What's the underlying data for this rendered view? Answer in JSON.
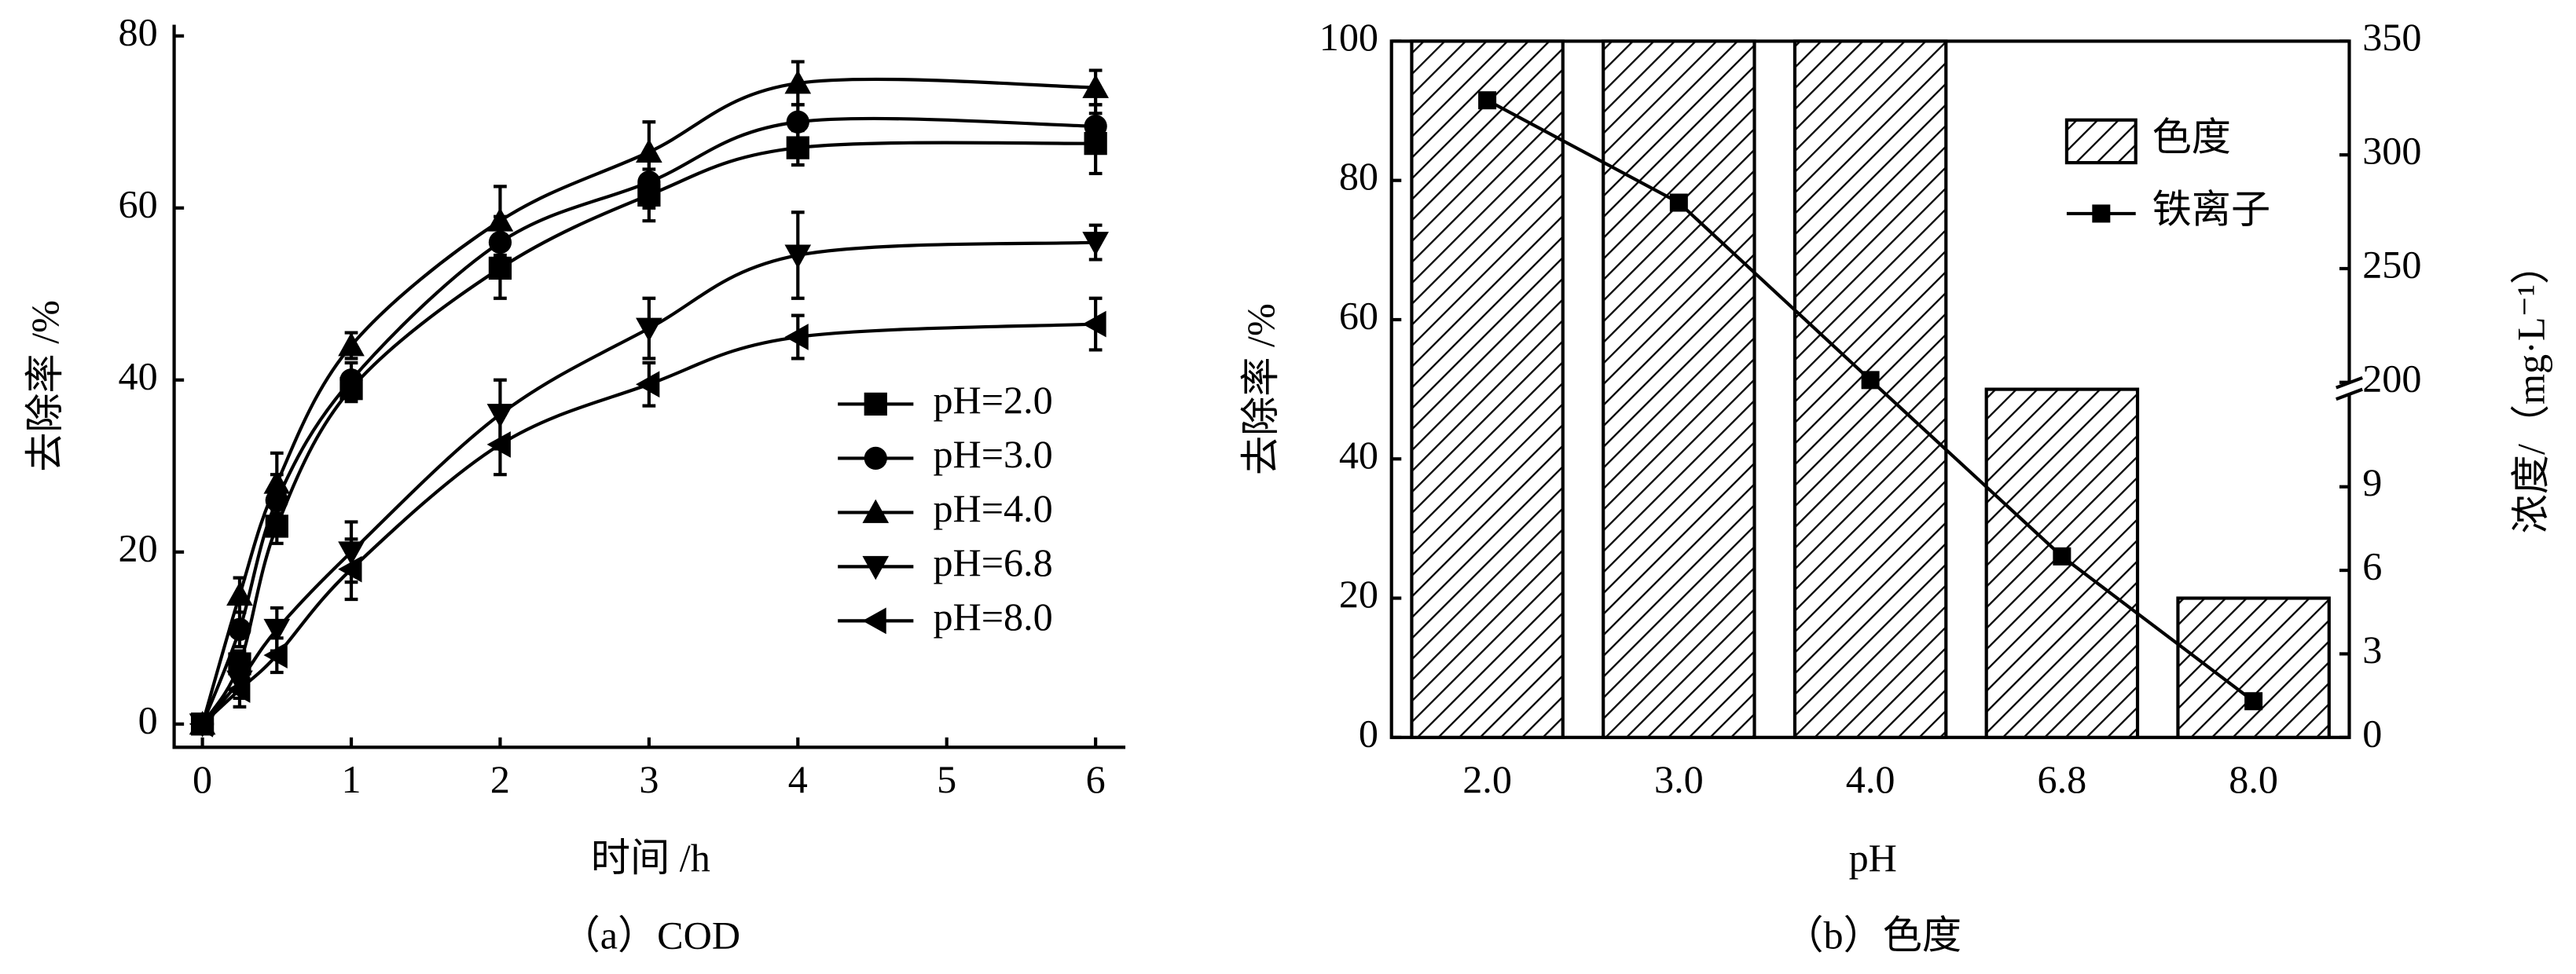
{
  "chart_data": [
    {
      "type": "line",
      "caption": "（a）COD",
      "xlabel": "时间 /h",
      "ylabel": "去除率 /%",
      "x": [
        0,
        0.25,
        0.5,
        1,
        2,
        3,
        4,
        6
      ],
      "xlim": [
        -0.19,
        6.2
      ],
      "xticks": [
        0,
        1,
        2,
        3,
        4,
        5,
        6
      ],
      "ylim": [
        -2.7,
        81.3
      ],
      "yticks": [
        0,
        20,
        40,
        60,
        80
      ],
      "legend_loc": "right",
      "series": [
        {
          "name": "pH=2.0",
          "color": "#000000",
          "marker": "square",
          "values": [
            0,
            7,
            23,
            39,
            53,
            61.5,
            67,
            67.5
          ],
          "errors": [
            0.8,
            1.5,
            2,
            1.5,
            3.5,
            3,
            2,
            3.5
          ]
        },
        {
          "name": "pH=3.0",
          "color": "#000000",
          "marker": "circle",
          "values": [
            0,
            11,
            26,
            40,
            56,
            63,
            70,
            69.5
          ],
          "errors": [
            0.8,
            2,
            3,
            2,
            3,
            3,
            2,
            2.5
          ]
        },
        {
          "name": "pH=4.0",
          "color": "#000000",
          "marker": "triangle-up",
          "values": [
            0,
            15,
            28,
            44,
            58.5,
            66.5,
            74.5,
            74
          ],
          "errors": [
            0.8,
            2,
            3.5,
            1.5,
            4,
            3.5,
            2.5,
            2
          ]
        },
        {
          "name": "pH=6.8",
          "color": "#000000",
          "marker": "triangle-down",
          "values": [
            0,
            5,
            11,
            20,
            36,
            46,
            54.5,
            56
          ],
          "errors": [
            0.8,
            2,
            2.5,
            3.5,
            4,
            3.5,
            5,
            2
          ]
        },
        {
          "name": "pH=8.0",
          "color": "#000000",
          "marker": "triangle-left",
          "values": [
            0,
            4,
            8,
            18,
            32.5,
            39.5,
            45,
            46.5
          ],
          "errors": [
            0.8,
            2,
            2,
            3.5,
            3.5,
            2.5,
            2.5,
            3
          ]
        }
      ]
    },
    {
      "type": "bar",
      "caption": "（b）色度",
      "xlabel": "pH",
      "ylabel": "去除率 /%",
      "y2label": "浓度/（mg·L⁻¹）",
      "categories": [
        "2.0",
        "3.0",
        "4.0",
        "6.8",
        "8.0"
      ],
      "ylim": [
        0,
        100
      ],
      "yticks": [
        0,
        20,
        40,
        60,
        80,
        100
      ],
      "y2lim": [
        0,
        350
      ],
      "y2break": [
        12,
        200
      ],
      "y2ticks": [
        0,
        3,
        6,
        9,
        200,
        250,
        300,
        350
      ],
      "legend_loc": "upper right",
      "series": [
        {
          "name": "色度",
          "color": "#000000",
          "values": [
            100,
            100,
            100,
            50,
            20
          ]
        },
        {
          "name": "铁离子",
          "color": "#000000",
          "axis": "y2",
          "marker": "square",
          "values": [
            324,
            279,
            201,
            6.5,
            1.3
          ]
        }
      ]
    }
  ]
}
